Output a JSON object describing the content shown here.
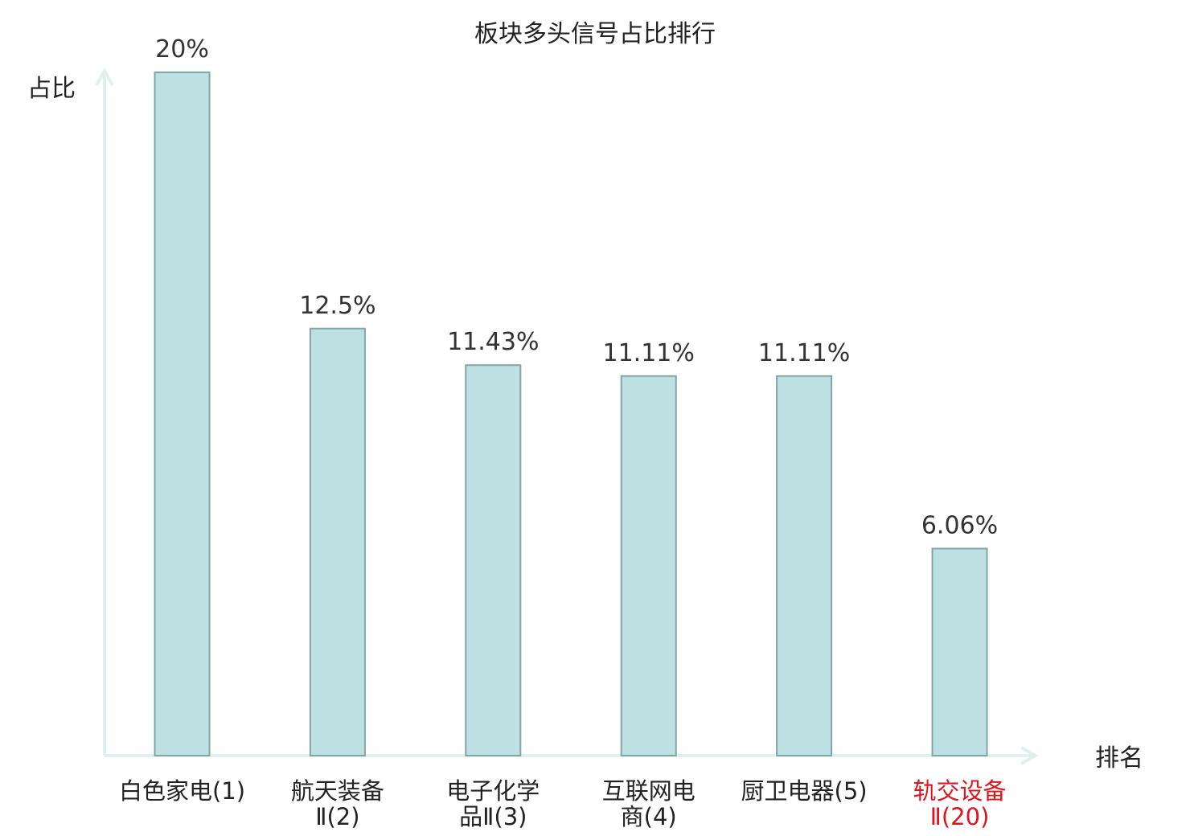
{
  "chart_data": {
    "type": "bar",
    "title": "板块多头信号占比排行",
    "ylabel": "占比",
    "xlabel": "排名",
    "categories": [
      [
        "白色家电(1)"
      ],
      [
        "航天装备",
        "Ⅱ(2)"
      ],
      [
        "电子化学",
        "品Ⅱ(3)"
      ],
      [
        "互联网电",
        "商(4)"
      ],
      [
        "厨卫电器(5)"
      ],
      [
        "轨交设备",
        "Ⅱ(20)"
      ]
    ],
    "values": [
      20,
      12.5,
      11.43,
      11.11,
      11.11,
      6.06
    ],
    "value_labels": [
      "20%",
      "12.5%",
      "11.43%",
      "11.11%",
      "11.11%",
      "6.06%"
    ],
    "highlight_index": 5,
    "ylim": [
      0,
      20
    ],
    "grid": false,
    "colors": {
      "bar_fill": "#bde0e3",
      "bar_stroke": "#84a4a6",
      "axis": "#dff0ee",
      "text": "#222222",
      "highlight": "#e0141e"
    }
  }
}
